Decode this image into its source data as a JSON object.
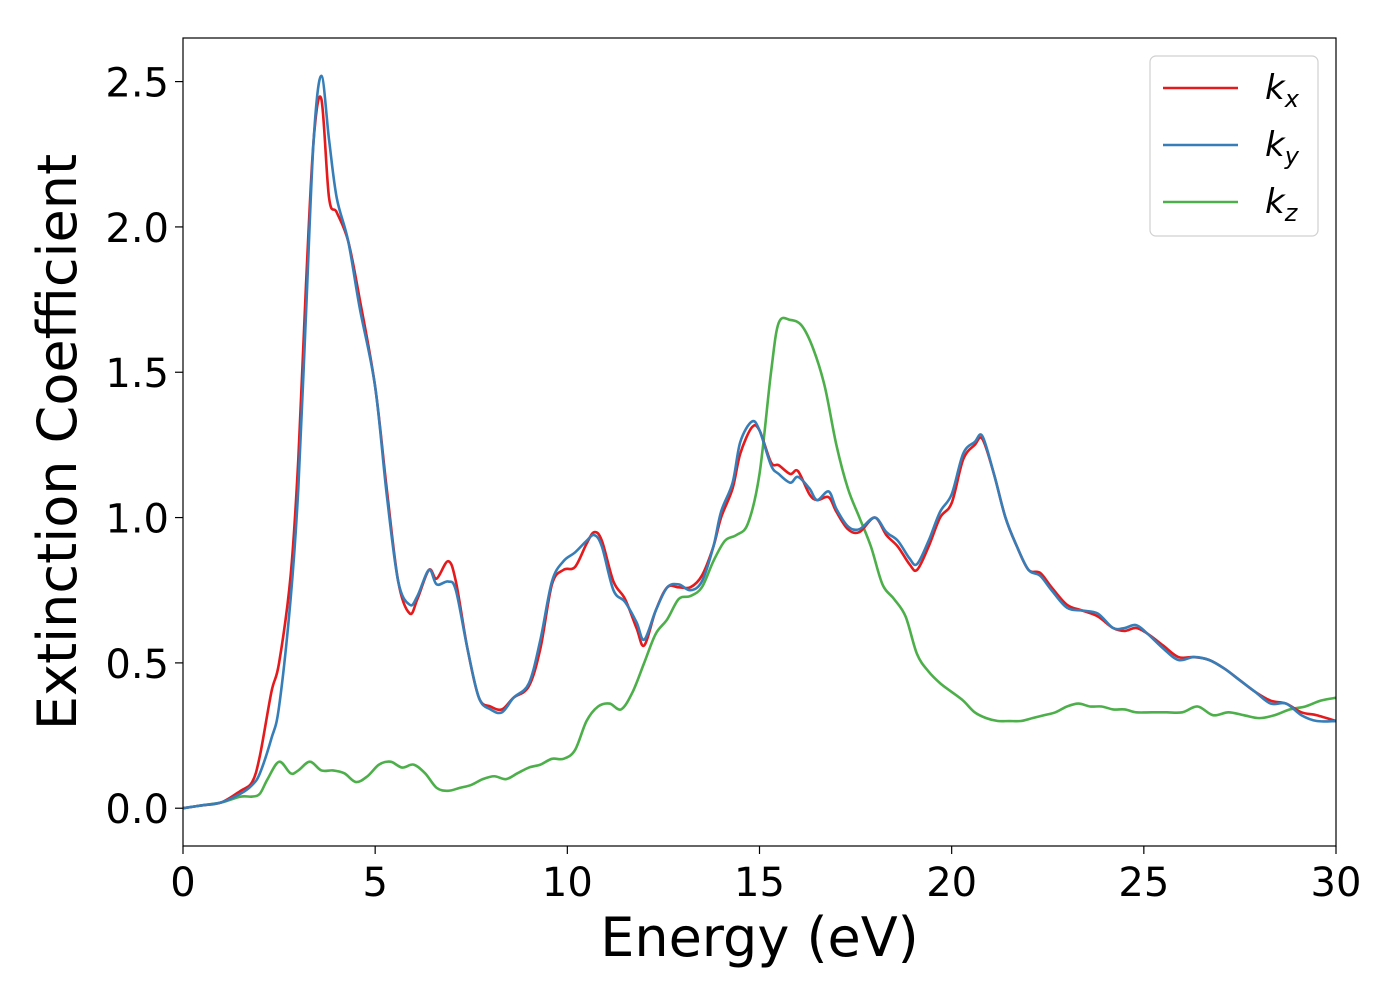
{
  "chart_data": {
    "type": "line",
    "title": "",
    "xlabel": "Energy (eV)",
    "ylabel": "Extinction Coefficient",
    "xlim": [
      0,
      30
    ],
    "ylim": [
      -0.13,
      2.65
    ],
    "xticks": [
      0,
      5,
      10,
      15,
      20,
      25,
      30
    ],
    "xtick_labels": [
      "0",
      "5",
      "10",
      "15",
      "20",
      "25",
      "30"
    ],
    "yticks": [
      0.0,
      0.5,
      1.0,
      1.5,
      2.0,
      2.5
    ],
    "ytick_labels": [
      "0.0",
      "0.5",
      "1.0",
      "1.5",
      "2.0",
      "2.5"
    ],
    "grid": false,
    "legend_position": "top-right",
    "series": [
      {
        "name": "k_x",
        "legend_base": "k",
        "legend_sub": "x",
        "color": "#e41a1c",
        "x": [
          0.0,
          0.5,
          1.0,
          1.5,
          1.8,
          2.0,
          2.3,
          2.5,
          2.8,
          3.0,
          3.2,
          3.4,
          3.6,
          3.8,
          4.0,
          4.3,
          4.6,
          5.0,
          5.3,
          5.6,
          5.9,
          6.1,
          6.4,
          6.6,
          6.9,
          7.1,
          7.4,
          7.7,
          8.0,
          8.3,
          8.6,
          9.0,
          9.3,
          9.6,
          9.9,
          10.2,
          10.5,
          10.7,
          10.9,
          11.2,
          11.5,
          11.8,
          12.0,
          12.3,
          12.6,
          12.9,
          13.2,
          13.5,
          13.8,
          14.0,
          14.3,
          14.5,
          14.8,
          15.0,
          15.3,
          15.5,
          15.8,
          16.0,
          16.3,
          16.5,
          16.8,
          17.0,
          17.3,
          17.6,
          18.0,
          18.3,
          18.6,
          18.9,
          19.1,
          19.4,
          19.7,
          20.0,
          20.3,
          20.6,
          20.8,
          21.1,
          21.4,
          21.7,
          22.0,
          22.3,
          22.6,
          23.0,
          23.4,
          23.8,
          24.2,
          24.5,
          24.8,
          25.1,
          25.5,
          25.9,
          26.3,
          26.7,
          27.1,
          27.5,
          27.9,
          28.3,
          28.7,
          29.1,
          29.5,
          30.0
        ],
        "y": [
          0.0,
          0.01,
          0.02,
          0.06,
          0.09,
          0.18,
          0.4,
          0.5,
          0.8,
          1.2,
          1.8,
          2.3,
          2.44,
          2.1,
          2.05,
          1.95,
          1.75,
          1.45,
          1.1,
          0.78,
          0.67,
          0.72,
          0.82,
          0.79,
          0.85,
          0.78,
          0.55,
          0.38,
          0.35,
          0.34,
          0.38,
          0.42,
          0.55,
          0.77,
          0.82,
          0.83,
          0.91,
          0.95,
          0.92,
          0.78,
          0.72,
          0.62,
          0.56,
          0.68,
          0.76,
          0.76,
          0.76,
          0.8,
          0.9,
          1.0,
          1.1,
          1.22,
          1.31,
          1.3,
          1.19,
          1.18,
          1.15,
          1.16,
          1.08,
          1.06,
          1.07,
          1.02,
          0.96,
          0.95,
          1.0,
          0.94,
          0.9,
          0.84,
          0.82,
          0.9,
          1.0,
          1.05,
          1.2,
          1.25,
          1.27,
          1.15,
          1.0,
          0.9,
          0.82,
          0.81,
          0.76,
          0.7,
          0.68,
          0.66,
          0.62,
          0.61,
          0.62,
          0.6,
          0.56,
          0.52,
          0.52,
          0.51,
          0.48,
          0.44,
          0.4,
          0.37,
          0.36,
          0.33,
          0.32,
          0.3
        ]
      },
      {
        "name": "k_y",
        "legend_base": "k",
        "legend_sub": "y",
        "color": "#377eb8",
        "x": [
          0.0,
          0.5,
          1.0,
          1.5,
          1.8,
          2.0,
          2.3,
          2.5,
          2.8,
          3.0,
          3.2,
          3.4,
          3.6,
          3.8,
          4.0,
          4.3,
          4.6,
          5.0,
          5.3,
          5.6,
          5.9,
          6.1,
          6.4,
          6.6,
          6.9,
          7.1,
          7.4,
          7.7,
          8.0,
          8.3,
          8.6,
          9.0,
          9.3,
          9.6,
          9.9,
          10.2,
          10.5,
          10.7,
          10.9,
          11.2,
          11.5,
          11.8,
          12.0,
          12.3,
          12.6,
          12.9,
          13.2,
          13.5,
          13.8,
          14.0,
          14.3,
          14.5,
          14.8,
          15.0,
          15.3,
          15.5,
          15.8,
          16.0,
          16.3,
          16.5,
          16.8,
          17.0,
          17.3,
          17.6,
          18.0,
          18.3,
          18.6,
          18.9,
          19.1,
          19.4,
          19.7,
          20.0,
          20.3,
          20.6,
          20.8,
          21.1,
          21.4,
          21.7,
          22.0,
          22.3,
          22.6,
          23.0,
          23.4,
          23.8,
          24.2,
          24.5,
          24.8,
          25.1,
          25.5,
          25.9,
          26.3,
          26.7,
          27.1,
          27.5,
          27.9,
          28.3,
          28.7,
          29.1,
          29.5,
          30.0
        ],
        "y": [
          0.0,
          0.01,
          0.02,
          0.05,
          0.08,
          0.12,
          0.24,
          0.35,
          0.72,
          1.1,
          1.7,
          2.3,
          2.52,
          2.3,
          2.1,
          1.95,
          1.72,
          1.45,
          1.08,
          0.78,
          0.7,
          0.73,
          0.82,
          0.77,
          0.78,
          0.75,
          0.55,
          0.38,
          0.34,
          0.33,
          0.38,
          0.43,
          0.58,
          0.78,
          0.85,
          0.88,
          0.92,
          0.94,
          0.9,
          0.75,
          0.71,
          0.64,
          0.58,
          0.68,
          0.76,
          0.77,
          0.75,
          0.78,
          0.9,
          1.02,
          1.12,
          1.26,
          1.33,
          1.3,
          1.18,
          1.15,
          1.12,
          1.14,
          1.1,
          1.06,
          1.09,
          1.03,
          0.97,
          0.96,
          1.0,
          0.95,
          0.92,
          0.86,
          0.84,
          0.92,
          1.02,
          1.08,
          1.22,
          1.26,
          1.28,
          1.15,
          1.0,
          0.9,
          0.82,
          0.8,
          0.75,
          0.69,
          0.68,
          0.67,
          0.62,
          0.62,
          0.63,
          0.6,
          0.55,
          0.51,
          0.52,
          0.51,
          0.48,
          0.44,
          0.4,
          0.36,
          0.36,
          0.32,
          0.3,
          0.3
        ]
      },
      {
        "name": "k_z",
        "legend_base": "k",
        "legend_sub": "z",
        "color": "#4daf4a",
        "x": [
          0.0,
          0.5,
          1.0,
          1.5,
          1.8,
          2.0,
          2.2,
          2.5,
          2.8,
          3.0,
          3.3,
          3.6,
          3.9,
          4.2,
          4.5,
          4.8,
          5.1,
          5.4,
          5.7,
          6.0,
          6.3,
          6.6,
          6.9,
          7.2,
          7.5,
          7.8,
          8.1,
          8.4,
          8.7,
          9.0,
          9.3,
          9.6,
          9.9,
          10.2,
          10.5,
          10.8,
          11.1,
          11.4,
          11.7,
          12.0,
          12.3,
          12.6,
          12.9,
          13.2,
          13.5,
          13.8,
          14.1,
          14.4,
          14.7,
          15.0,
          15.3,
          15.5,
          15.8,
          16.1,
          16.4,
          16.7,
          17.0,
          17.3,
          17.6,
          17.9,
          18.2,
          18.5,
          18.8,
          19.1,
          19.4,
          19.7,
          20.0,
          20.3,
          20.6,
          20.9,
          21.2,
          21.5,
          21.8,
          22.1,
          22.4,
          22.7,
          23.0,
          23.3,
          23.6,
          23.9,
          24.2,
          24.5,
          24.8,
          25.2,
          25.6,
          26.0,
          26.4,
          26.8,
          27.2,
          27.6,
          28.0,
          28.4,
          28.8,
          29.2,
          29.6,
          30.0
        ],
        "y": [
          0.0,
          0.01,
          0.02,
          0.04,
          0.04,
          0.05,
          0.1,
          0.16,
          0.12,
          0.13,
          0.16,
          0.13,
          0.13,
          0.12,
          0.09,
          0.11,
          0.15,
          0.16,
          0.14,
          0.15,
          0.12,
          0.07,
          0.06,
          0.07,
          0.08,
          0.1,
          0.11,
          0.1,
          0.12,
          0.14,
          0.15,
          0.17,
          0.17,
          0.2,
          0.3,
          0.35,
          0.36,
          0.34,
          0.4,
          0.5,
          0.6,
          0.65,
          0.72,
          0.73,
          0.76,
          0.85,
          0.92,
          0.94,
          0.98,
          1.15,
          1.5,
          1.67,
          1.68,
          1.66,
          1.58,
          1.45,
          1.25,
          1.1,
          1.0,
          0.9,
          0.77,
          0.72,
          0.66,
          0.53,
          0.47,
          0.43,
          0.4,
          0.37,
          0.33,
          0.31,
          0.3,
          0.3,
          0.3,
          0.31,
          0.32,
          0.33,
          0.35,
          0.36,
          0.35,
          0.35,
          0.34,
          0.34,
          0.33,
          0.33,
          0.33,
          0.33,
          0.35,
          0.32,
          0.33,
          0.32,
          0.31,
          0.32,
          0.34,
          0.35,
          0.37,
          0.38
        ]
      }
    ]
  }
}
